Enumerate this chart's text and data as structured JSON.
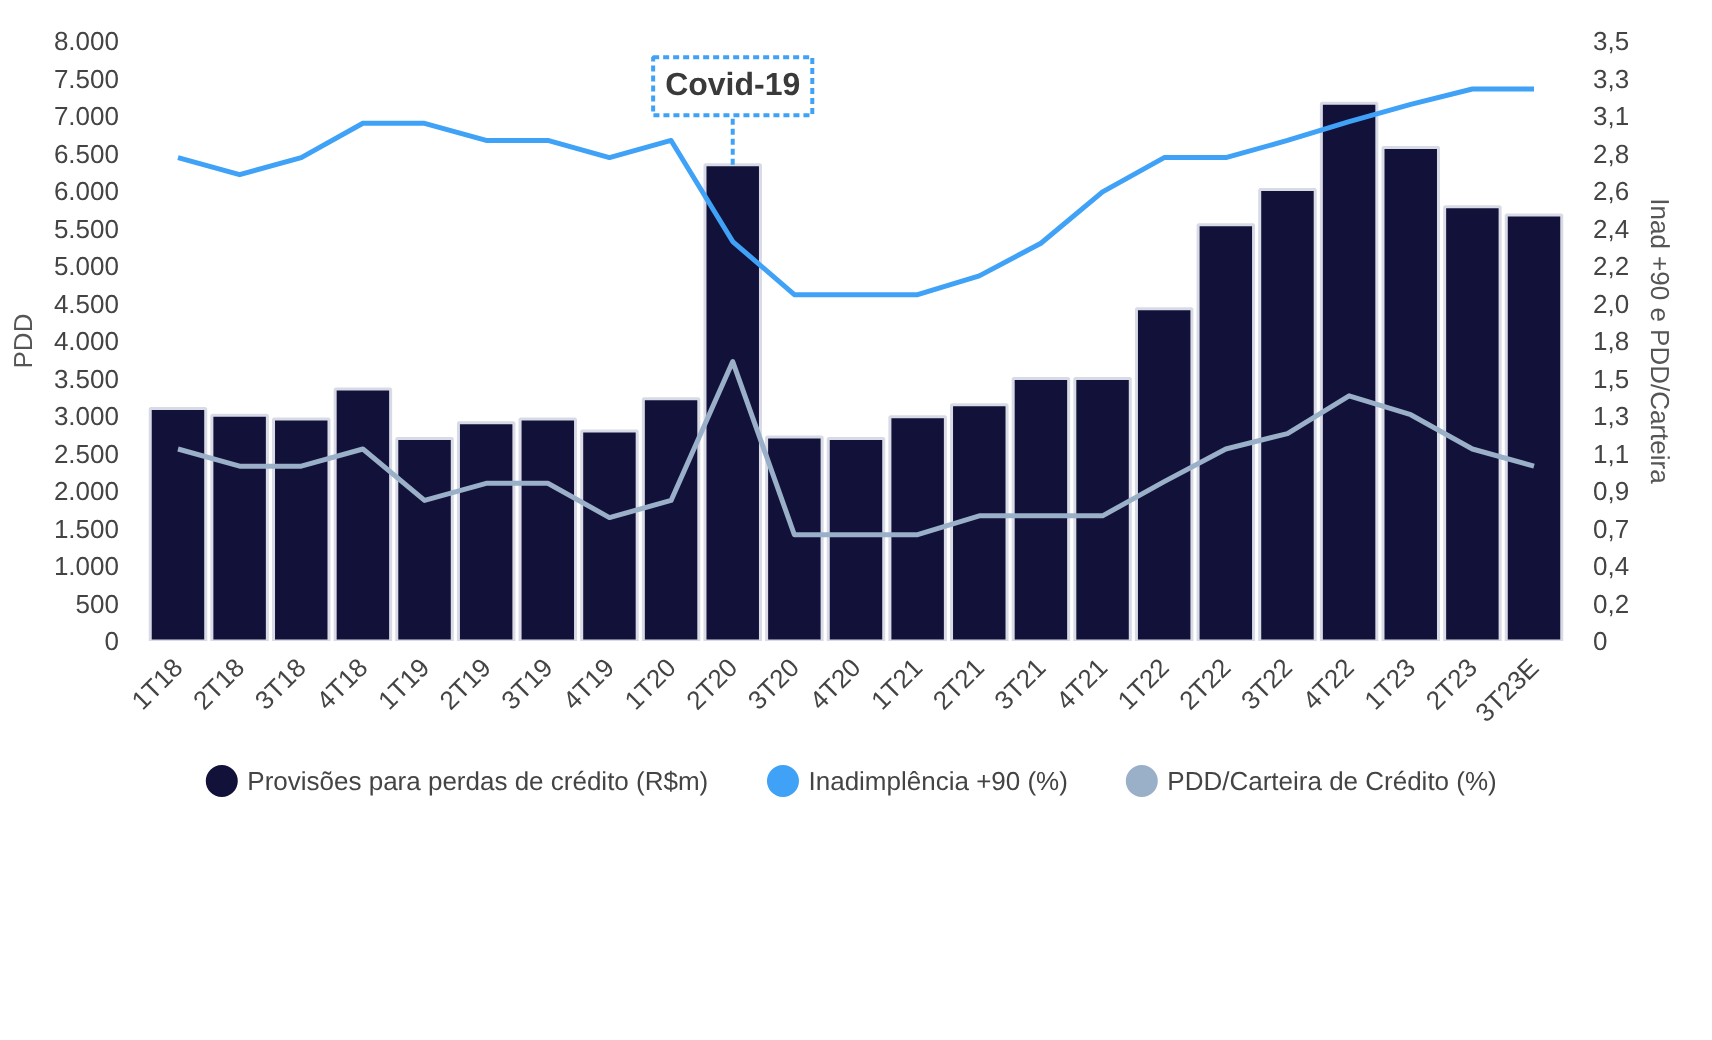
{
  "chart_data": {
    "type": "bar",
    "xlabel": null,
    "ylabel": "PDD",
    "y2label": "Inad +90 e PDD/Carteira",
    "categories": [
      "1T18",
      "2T18",
      "3T18",
      "4T18",
      "1T19",
      "2T19",
      "3T19",
      "4T19",
      "1T20",
      "2T20",
      "3T20",
      "4T20",
      "1T21",
      "2T21",
      "3T21",
      "4T21",
      "1T22",
      "2T22",
      "3T22",
      "4T22",
      "1T23",
      "2T23",
      "3T23E"
    ],
    "series": [
      {
        "name": "Provisões para perdas de crédito (R$m)",
        "color": "#12113a",
        "values": [
          3100,
          3010,
          2960,
          3360,
          2700,
          2910,
          2960,
          2800,
          3230,
          6350,
          2720,
          2700,
          2990,
          3150,
          3500,
          3500,
          4430,
          5550,
          6020,
          7170,
          6580,
          5790,
          5680
        ]
      },
      {
        "name": "Inadimplência +90 (%)",
        "type": "line",
        "axis": "y2",
        "color": "#3fa2f7",
        "values": [
          2.82,
          2.72,
          2.82,
          3.02,
          3.02,
          2.92,
          2.92,
          2.82,
          2.92,
          2.33,
          2.02,
          2.02,
          2.02,
          2.13,
          2.32,
          2.62,
          2.82,
          2.82,
          2.92,
          3.03,
          3.13,
          3.22,
          3.22
        ]
      },
      {
        "name": "PDD/Carteira de Crédito (%)",
        "type": "line",
        "axis": "y2",
        "color": "#9aafc8",
        "values": [
          1.12,
          1.02,
          1.02,
          1.12,
          0.82,
          0.92,
          0.92,
          0.72,
          0.82,
          1.63,
          0.62,
          0.62,
          0.62,
          0.73,
          0.73,
          0.73,
          0.93,
          1.12,
          1.21,
          1.43,
          1.32,
          1.12,
          1.02
        ]
      }
    ],
    "ylim": [
      0,
      8000
    ],
    "yticks": [
      {
        "value": 0,
        "label": "0"
      },
      {
        "value": 500,
        "label": "500"
      },
      {
        "value": 1000,
        "label": "1.000"
      },
      {
        "value": 1500,
        "label": "1.500"
      },
      {
        "value": 2000,
        "label": "2.000"
      },
      {
        "value": 2500,
        "label": "2.500"
      },
      {
        "value": 3000,
        "label": "3.000"
      },
      {
        "value": 3500,
        "label": "3.500"
      },
      {
        "value": 4000,
        "label": "4.000"
      },
      {
        "value": 4500,
        "label": "4.500"
      },
      {
        "value": 5000,
        "label": "5.000"
      },
      {
        "value": 5500,
        "label": "5.500"
      },
      {
        "value": 6000,
        "label": "6.000"
      },
      {
        "value": 6500,
        "label": "6.500"
      },
      {
        "value": 7000,
        "label": "7.000"
      },
      {
        "value": 7500,
        "label": "7.500"
      },
      {
        "value": 8000,
        "label": "8.000"
      }
    ],
    "y2lim": [
      0,
      3.5
    ],
    "y2ticks": [
      {
        "value": 0,
        "label": "0"
      },
      {
        "value": 0.21875,
        "label": "0,2"
      },
      {
        "value": 0.4375,
        "label": "0,4"
      },
      {
        "value": 0.65625,
        "label": "0,7"
      },
      {
        "value": 0.875,
        "label": "0,9"
      },
      {
        "value": 1.09375,
        "label": "1,1"
      },
      {
        "value": 1.3125,
        "label": "1,3"
      },
      {
        "value": 1.53125,
        "label": "1,5"
      },
      {
        "value": 1.75,
        "label": "1,8"
      },
      {
        "value": 1.96875,
        "label": "2,0"
      },
      {
        "value": 2.1875,
        "label": "2,2"
      },
      {
        "value": 2.40625,
        "label": "2,4"
      },
      {
        "value": 2.625,
        "label": "2,6"
      },
      {
        "value": 2.84375,
        "label": "2,8"
      },
      {
        "value": 3.0625,
        "label": "3,1"
      },
      {
        "value": 3.28125,
        "label": "3,3"
      },
      {
        "value": 3.5,
        "label": "3,5"
      }
    ],
    "annotations": [
      {
        "text": "Covid-19",
        "x": "2T20",
        "y": 6350
      }
    ],
    "grid": false,
    "legend": "bottom",
    "marker": "none",
    "line_style": "solid"
  }
}
